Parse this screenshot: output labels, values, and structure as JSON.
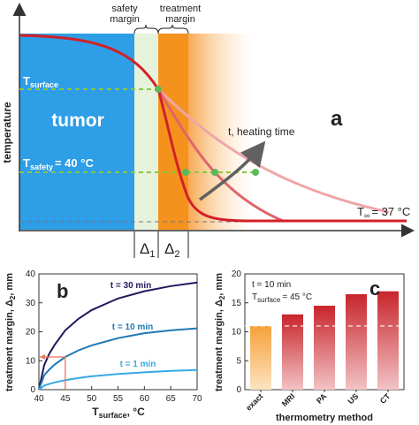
{
  "panel_a": {
    "letter": "a",
    "ylabel": "temperature",
    "tumor_label": "tumor",
    "safety_margin_label": [
      "safety",
      "margin"
    ],
    "treatment_margin_label": [
      "treatment",
      "margin"
    ],
    "t_surface_label": "T",
    "t_surface_sub": "surface",
    "t_safety_label": "T",
    "t_safety_sub": "safety",
    "t_safety_value": "= 40 °C",
    "heating_time_label": "t, heating time",
    "t_inf_label": "T",
    "t_inf_sub": "∞",
    "t_inf_value": "= 37 °C",
    "delta1": "Δ",
    "delta1_sub": "1",
    "delta2": "Δ",
    "delta2_sub": "2",
    "colors": {
      "tumor": "#2e9ee6",
      "safety": "#e7f2dc",
      "treatment": "#f5921e",
      "curve": "#d32027",
      "guide": "#8dc63f",
      "arrow": "#606060"
    }
  },
  "chart_data": [
    {
      "panel": "b",
      "type": "line",
      "letter": "b",
      "xlabel": "T",
      "xlabel_sub": "surface",
      "xlabel_unit": ", °C",
      "ylabel": "treatment margin, Δ",
      "ylabel_sub": "2",
      "ylabel_unit": ", mm",
      "xlim": [
        40,
        70
      ],
      "ylim": [
        0,
        40
      ],
      "xticks": [
        40,
        45,
        50,
        55,
        60,
        65,
        70
      ],
      "yticks": [
        0,
        10,
        20,
        30,
        40
      ],
      "series": [
        {
          "name": "t = 30 min",
          "color": "#1f1a5c",
          "x": [
            40,
            41,
            42,
            43,
            45,
            47.5,
            50,
            55,
            60,
            65,
            70
          ],
          "y": [
            0,
            8.5,
            12.5,
            15.5,
            20.5,
            24.5,
            27.5,
            31.5,
            34,
            35.8,
            37
          ]
        },
        {
          "name": "t = 10 min",
          "color": "#1f78b4",
          "x": [
            40,
            41,
            42,
            43,
            45,
            47.5,
            50,
            55,
            60,
            65,
            70
          ],
          "y": [
            0,
            5,
            7,
            8.7,
            11.3,
            13.6,
            15.3,
            17.8,
            19.5,
            20.5,
            21.2
          ]
        },
        {
          "name": "t = 1 min",
          "color": "#38a9e0",
          "x": [
            40,
            41,
            42,
            43,
            45,
            47.5,
            50,
            55,
            60,
            65,
            70
          ],
          "y": [
            0,
            1.4,
            2,
            2.5,
            3.3,
            4,
            4.6,
            5.4,
            6,
            6.5,
            6.8
          ]
        }
      ],
      "marker": {
        "x": 45,
        "y": 11.3,
        "color": "#e8735a"
      }
    },
    {
      "panel": "c",
      "type": "bar",
      "letter": "c",
      "annotation_line1": "t = 10 min",
      "annotation_line2": "T",
      "annotation_line2_sub": "surface",
      "annotation_line2_value": "= 45 °C",
      "xlabel": "thermometry method",
      "ylabel": "treatment margin, Δ",
      "ylabel_sub": "2",
      "ylabel_unit": ", mm",
      "ylim": [
        0,
        20
      ],
      "yticks": [
        0,
        5,
        10,
        15,
        20
      ],
      "categories": [
        "exact",
        "MRI",
        "PA",
        "US",
        "CT"
      ],
      "values": [
        11,
        13,
        14.5,
        16.5,
        17
      ],
      "reference_line": 11,
      "colors": [
        "#f5a13a",
        "#c8252c",
        "#c8252c",
        "#c8252c",
        "#c8252c"
      ]
    }
  ]
}
